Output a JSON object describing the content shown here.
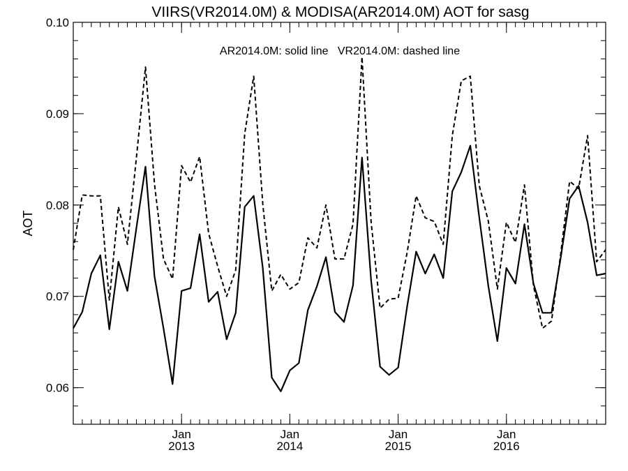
{
  "chart_data": {
    "type": "line",
    "title": "VIIRS(VR2014.0M) & MODISA(AR2014.0M)  AOT for sasg",
    "legend_text": "AR2014.0M: solid line   VR2014.0M: dashed line",
    "ylabel": "AOT",
    "ylim": [
      0.056,
      0.1
    ],
    "yticks": [
      0.06,
      0.07,
      0.08,
      0.09,
      0.1
    ],
    "ytick_labels": [
      "0.06",
      "0.07",
      "0.08",
      "0.09",
      "0.10"
    ],
    "x_start": "2012-01",
    "xticks": [
      {
        "date": "2013-01",
        "month": "Jan",
        "year": "2013"
      },
      {
        "date": "2014-01",
        "month": "Jan",
        "year": "2014"
      },
      {
        "date": "2015-01",
        "month": "Jan",
        "year": "2015"
      },
      {
        "date": "2016-01",
        "month": "Jan",
        "year": "2016"
      }
    ],
    "x": [
      "2012-01",
      "2012-02",
      "2012-03",
      "2012-04",
      "2012-05",
      "2012-06",
      "2012-07",
      "2012-08",
      "2012-09",
      "2012-10",
      "2012-11",
      "2012-12",
      "2013-01",
      "2013-02",
      "2013-03",
      "2013-04",
      "2013-05",
      "2013-06",
      "2013-07",
      "2013-08",
      "2013-09",
      "2013-10",
      "2013-11",
      "2013-12",
      "2014-01",
      "2014-02",
      "2014-03",
      "2014-04",
      "2014-05",
      "2014-06",
      "2014-07",
      "2014-08",
      "2014-09",
      "2014-10",
      "2014-11",
      "2014-12",
      "2015-01",
      "2015-02",
      "2015-03",
      "2015-04",
      "2015-05",
      "2015-06",
      "2015-07",
      "2015-08",
      "2015-09",
      "2015-10",
      "2015-11",
      "2015-12",
      "2016-01",
      "2016-02",
      "2016-03",
      "2016-04",
      "2016-05",
      "2016-06",
      "2016-07",
      "2016-08",
      "2016-09",
      "2016-10",
      "2016-11",
      "2016-12"
    ],
    "series": [
      {
        "style": "solid",
        "values": [
          0.0665,
          0.0683,
          0.0725,
          0.0745,
          0.0664,
          0.0738,
          0.0706,
          0.0775,
          0.0842,
          0.0722,
          0.0665,
          0.0604,
          0.0706,
          0.0709,
          0.0768,
          0.0694,
          0.0705,
          0.0653,
          0.0682,
          0.0798,
          0.081,
          0.0731,
          0.0611,
          0.0596,
          0.0619,
          0.0627,
          0.0685,
          0.0711,
          0.0743,
          0.0683,
          0.0672,
          0.0712,
          0.0852,
          0.0718,
          0.0623,
          0.0614,
          0.0622,
          0.0689,
          0.0749,
          0.0725,
          0.0746,
          0.072,
          0.0815,
          0.0836,
          0.0865,
          0.0786,
          0.0711,
          0.0651,
          0.0731,
          0.0714,
          0.0779,
          0.0714,
          0.0682,
          0.0682,
          0.0741,
          0.0807,
          0.0821,
          0.0781,
          0.0723,
          0.0725
        ]
      },
      {
        "style": "dashed",
        "values": [
          0.0751,
          0.0811,
          0.081,
          0.081,
          0.0696,
          0.0798,
          0.0757,
          0.0852,
          0.0951,
          0.0823,
          0.0741,
          0.0719,
          0.0843,
          0.0825,
          0.0853,
          0.0769,
          0.0733,
          0.07,
          0.0729,
          0.0878,
          0.0941,
          0.0801,
          0.0706,
          0.0724,
          0.0708,
          0.0715,
          0.0764,
          0.0753,
          0.08,
          0.0741,
          0.0741,
          0.0779,
          0.0962,
          0.0782,
          0.0687,
          0.0697,
          0.0698,
          0.0748,
          0.081,
          0.0786,
          0.0782,
          0.0757,
          0.0876,
          0.0936,
          0.0941,
          0.0821,
          0.0782,
          0.0708,
          0.0781,
          0.0759,
          0.0822,
          0.0712,
          0.0665,
          0.0673,
          0.0745,
          0.0826,
          0.0818,
          0.0876,
          0.0738,
          0.0751
        ]
      }
    ]
  }
}
